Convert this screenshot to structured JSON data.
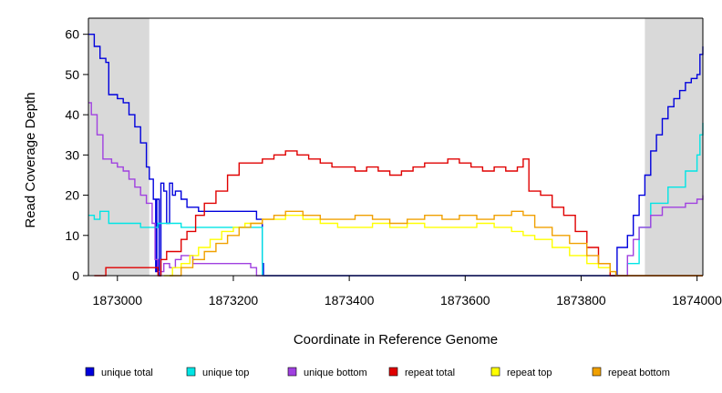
{
  "chart_data": {
    "type": "line",
    "xlabel": "Coordinate in Reference Genome",
    "ylabel": "Read Coverage Depth",
    "xlim": [
      1872950,
      1874010
    ],
    "ylim": [
      0,
      64
    ],
    "x_ticks": [
      1873000,
      1873200,
      1873400,
      1873600,
      1873800,
      1874000
    ],
    "x_tick_labels": [
      "1873000",
      "1873200",
      "1873400",
      "1873600",
      "1873800",
      "1874000"
    ],
    "y_ticks": [
      0,
      10,
      20,
      30,
      40,
      50,
      60
    ],
    "y_tick_labels": [
      "0",
      "10",
      "20",
      "30",
      "40",
      "50",
      "60"
    ],
    "shaded_regions": [
      {
        "x_start": 1872950,
        "x_end": 1873055,
        "color": "#d9d9d9"
      },
      {
        "x_start": 1873910,
        "x_end": 1874010,
        "color": "#d9d9d9"
      }
    ],
    "legend_position": "bottom",
    "series": [
      {
        "name": "unique total",
        "color": "#0000dd",
        "points": [
          [
            1872950,
            60
          ],
          [
            1872960,
            57
          ],
          [
            1872970,
            54
          ],
          [
            1872980,
            53
          ],
          [
            1872985,
            45
          ],
          [
            1873000,
            44
          ],
          [
            1873010,
            43
          ],
          [
            1873020,
            40
          ],
          [
            1873030,
            37
          ],
          [
            1873040,
            33
          ],
          [
            1873050,
            27
          ],
          [
            1873055,
            24
          ],
          [
            1873062,
            19
          ],
          [
            1873066,
            1
          ],
          [
            1873068,
            19
          ],
          [
            1873072,
            0
          ],
          [
            1873075,
            23
          ],
          [
            1873080,
            21
          ],
          [
            1873085,
            13
          ],
          [
            1873090,
            23
          ],
          [
            1873095,
            20
          ],
          [
            1873100,
            21
          ],
          [
            1873110,
            19
          ],
          [
            1873120,
            17
          ],
          [
            1873140,
            16
          ],
          [
            1873200,
            16
          ],
          [
            1873230,
            16
          ],
          [
            1873240,
            14
          ],
          [
            1873250,
            3
          ],
          [
            1873252,
            0
          ],
          [
            1873860,
            0
          ],
          [
            1873862,
            7
          ],
          [
            1873880,
            10
          ],
          [
            1873890,
            15
          ],
          [
            1873900,
            20
          ],
          [
            1873910,
            25
          ],
          [
            1873920,
            31
          ],
          [
            1873930,
            35
          ],
          [
            1873940,
            39
          ],
          [
            1873950,
            42
          ],
          [
            1873960,
            44
          ],
          [
            1873970,
            46
          ],
          [
            1873980,
            48
          ],
          [
            1873990,
            49
          ],
          [
            1874000,
            50
          ],
          [
            1874005,
            55
          ],
          [
            1874010,
            57
          ]
        ]
      },
      {
        "name": "unique top",
        "color": "#00e5e5",
        "points": [
          [
            1872950,
            15
          ],
          [
            1872960,
            14
          ],
          [
            1872970,
            16
          ],
          [
            1872985,
            13
          ],
          [
            1873000,
            13
          ],
          [
            1873040,
            12
          ],
          [
            1873060,
            12
          ],
          [
            1873070,
            13
          ],
          [
            1873080,
            13
          ],
          [
            1873100,
            13
          ],
          [
            1873110,
            12
          ],
          [
            1873140,
            12
          ],
          [
            1873200,
            12
          ],
          [
            1873240,
            12
          ],
          [
            1873250,
            0
          ],
          [
            1873860,
            0
          ],
          [
            1873880,
            3
          ],
          [
            1873900,
            12
          ],
          [
            1873920,
            18
          ],
          [
            1873950,
            22
          ],
          [
            1873980,
            26
          ],
          [
            1874000,
            30
          ],
          [
            1874005,
            35
          ],
          [
            1874010,
            38
          ]
        ]
      },
      {
        "name": "unique bottom",
        "color": "#a040e0",
        "points": [
          [
            1872950,
            43
          ],
          [
            1872955,
            40
          ],
          [
            1872965,
            35
          ],
          [
            1872975,
            29
          ],
          [
            1872990,
            28
          ],
          [
            1873000,
            27
          ],
          [
            1873010,
            26
          ],
          [
            1873020,
            24
          ],
          [
            1873030,
            22
          ],
          [
            1873040,
            20
          ],
          [
            1873050,
            18
          ],
          [
            1873060,
            13
          ],
          [
            1873065,
            4
          ],
          [
            1873070,
            1
          ],
          [
            1873080,
            3
          ],
          [
            1873090,
            2
          ],
          [
            1873100,
            4
          ],
          [
            1873110,
            5
          ],
          [
            1873130,
            3
          ],
          [
            1873200,
            3
          ],
          [
            1873230,
            2
          ],
          [
            1873240,
            0
          ],
          [
            1873870,
            0
          ],
          [
            1873880,
            5
          ],
          [
            1873890,
            9
          ],
          [
            1873900,
            12
          ],
          [
            1873920,
            15
          ],
          [
            1873940,
            17
          ],
          [
            1873960,
            17
          ],
          [
            1873980,
            18
          ],
          [
            1874000,
            19
          ],
          [
            1874010,
            20
          ]
        ]
      },
      {
        "name": "repeat total",
        "color": "#e00000",
        "points": [
          [
            1872960,
            0
          ],
          [
            1872980,
            2
          ],
          [
            1873000,
            2
          ],
          [
            1873060,
            2
          ],
          [
            1873070,
            0
          ],
          [
            1873075,
            4
          ],
          [
            1873085,
            6
          ],
          [
            1873100,
            6
          ],
          [
            1873110,
            9
          ],
          [
            1873120,
            11
          ],
          [
            1873135,
            15
          ],
          [
            1873150,
            18
          ],
          [
            1873170,
            21
          ],
          [
            1873190,
            25
          ],
          [
            1873210,
            28
          ],
          [
            1873230,
            28
          ],
          [
            1873250,
            29
          ],
          [
            1873270,
            30
          ],
          [
            1873290,
            31
          ],
          [
            1873310,
            30
          ],
          [
            1873330,
            29
          ],
          [
            1873350,
            28
          ],
          [
            1873370,
            27
          ],
          [
            1873390,
            27
          ],
          [
            1873410,
            26
          ],
          [
            1873430,
            27
          ],
          [
            1873450,
            26
          ],
          [
            1873470,
            25
          ],
          [
            1873490,
            26
          ],
          [
            1873510,
            27
          ],
          [
            1873530,
            28
          ],
          [
            1873550,
            28
          ],
          [
            1873570,
            29
          ],
          [
            1873590,
            28
          ],
          [
            1873610,
            27
          ],
          [
            1873630,
            26
          ],
          [
            1873650,
            27
          ],
          [
            1873670,
            26
          ],
          [
            1873690,
            27
          ],
          [
            1873700,
            29
          ],
          [
            1873710,
            21
          ],
          [
            1873730,
            20
          ],
          [
            1873750,
            17
          ],
          [
            1873770,
            15
          ],
          [
            1873790,
            11
          ],
          [
            1873810,
            7
          ],
          [
            1873830,
            3
          ],
          [
            1873850,
            0
          ],
          [
            1874010,
            0
          ]
        ]
      },
      {
        "name": "repeat top",
        "color": "#ffff00",
        "points": [
          [
            1873080,
            0
          ],
          [
            1873095,
            2
          ],
          [
            1873110,
            3
          ],
          [
            1873125,
            5
          ],
          [
            1873140,
            7
          ],
          [
            1873160,
            9
          ],
          [
            1873180,
            11
          ],
          [
            1873200,
            12
          ],
          [
            1873220,
            13
          ],
          [
            1873250,
            14
          ],
          [
            1873270,
            14
          ],
          [
            1873290,
            15
          ],
          [
            1873320,
            14
          ],
          [
            1873350,
            13
          ],
          [
            1873380,
            12
          ],
          [
            1873410,
            12
          ],
          [
            1873440,
            13
          ],
          [
            1873470,
            12
          ],
          [
            1873500,
            13
          ],
          [
            1873530,
            12
          ],
          [
            1873560,
            12
          ],
          [
            1873590,
            12
          ],
          [
            1873620,
            13
          ],
          [
            1873650,
            12
          ],
          [
            1873680,
            11
          ],
          [
            1873700,
            10
          ],
          [
            1873720,
            9
          ],
          [
            1873750,
            7
          ],
          [
            1873780,
            5
          ],
          [
            1873810,
            3
          ],
          [
            1873830,
            2
          ],
          [
            1873850,
            1
          ],
          [
            1873860,
            0
          ]
        ]
      },
      {
        "name": "repeat bottom",
        "color": "#f0a000",
        "points": [
          [
            1873090,
            0
          ],
          [
            1873110,
            2
          ],
          [
            1873130,
            4
          ],
          [
            1873150,
            6
          ],
          [
            1873170,
            8
          ],
          [
            1873190,
            10
          ],
          [
            1873210,
            12
          ],
          [
            1873230,
            13
          ],
          [
            1873250,
            14
          ],
          [
            1873270,
            15
          ],
          [
            1873290,
            16
          ],
          [
            1873320,
            15
          ],
          [
            1873350,
            14
          ],
          [
            1873380,
            14
          ],
          [
            1873410,
            15
          ],
          [
            1873440,
            14
          ],
          [
            1873470,
            13
          ],
          [
            1873500,
            14
          ],
          [
            1873530,
            15
          ],
          [
            1873560,
            14
          ],
          [
            1873590,
            15
          ],
          [
            1873620,
            14
          ],
          [
            1873650,
            15
          ],
          [
            1873680,
            16
          ],
          [
            1873700,
            15
          ],
          [
            1873720,
            12
          ],
          [
            1873750,
            10
          ],
          [
            1873780,
            8
          ],
          [
            1873810,
            5
          ],
          [
            1873830,
            3
          ],
          [
            1873850,
            1
          ],
          [
            1873860,
            0
          ],
          [
            1874010,
            0
          ]
        ]
      }
    ]
  }
}
